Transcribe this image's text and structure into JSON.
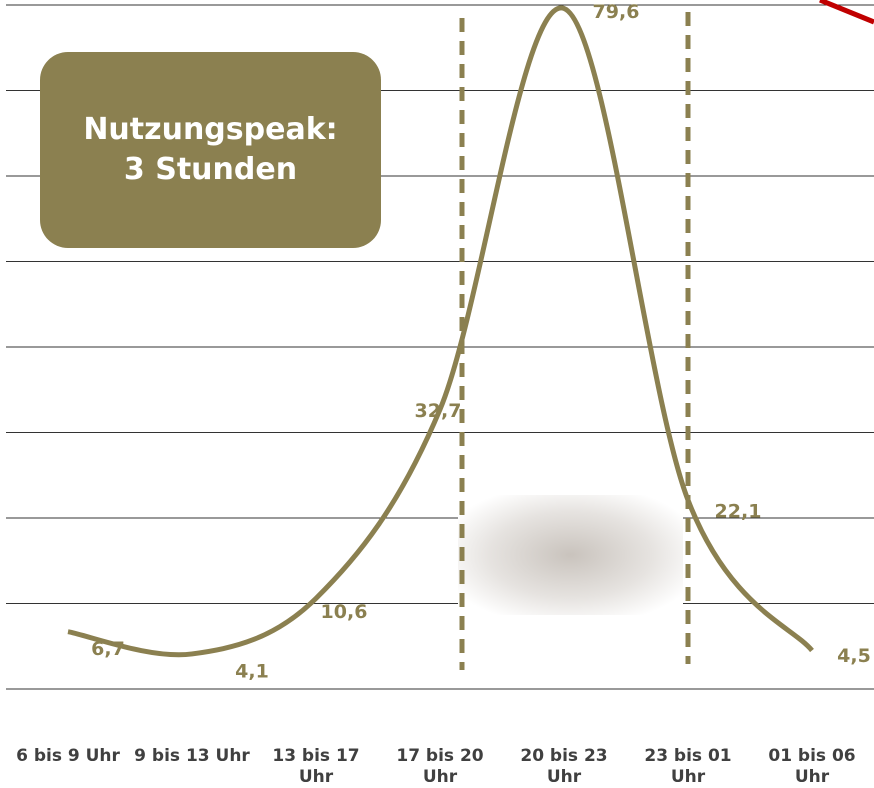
{
  "chart_data": {
    "type": "line",
    "annotation": [
      "Nutzungspeak:",
      "3 Stunden"
    ],
    "categories": [
      "6 bis 9 Uhr",
      "9 bis 13 Uhr",
      "13 bis 17 Uhr",
      "17 bis 20 Uhr",
      "20 bis 23 Uhr",
      "23 bis 01 Uhr",
      "01 bis 06 Uhr"
    ],
    "series": [
      {
        "color": "#8b8050",
        "values": [
          6.7,
          4.1,
          10.6,
          32.7,
          79.6,
          22.1,
          4.5
        ],
        "value_labels": [
          "6,7",
          "4,1",
          "10,6",
          "32,7",
          "79,6",
          "22,1",
          "4,5"
        ]
      }
    ],
    "ylim": [
      0,
      80
    ],
    "yticks": [
      0,
      10,
      20,
      30,
      40,
      50,
      60,
      70,
      80
    ],
    "grid": true
  }
}
